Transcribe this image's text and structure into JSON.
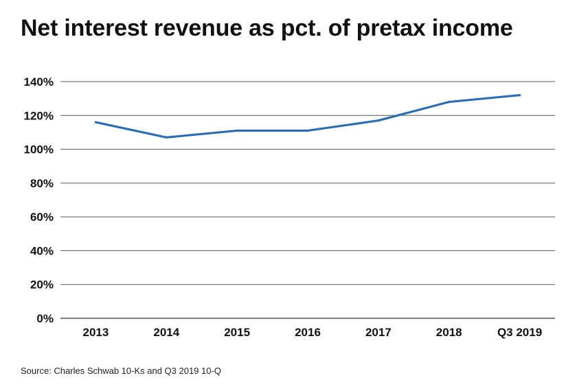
{
  "chart_data": {
    "type": "line",
    "title": "Net interest revenue as pct. of pretax income",
    "xlabel": "",
    "ylabel": "",
    "categories": [
      "2013",
      "2014",
      "2015",
      "2016",
      "2017",
      "2018",
      "Q3 2019"
    ],
    "series": [
      {
        "name": "Net interest revenue as pct. of pretax income",
        "values": [
          116,
          107,
          111,
          111,
          117,
          128,
          132
        ],
        "color": "#2a6db3"
      }
    ],
    "ylim": [
      0,
      140
    ],
    "yticks": [
      0,
      20,
      40,
      60,
      80,
      100,
      120,
      140
    ],
    "ytick_labels": [
      "0%",
      "20%",
      "40%",
      "60%",
      "80%",
      "100%",
      "120%",
      "140%"
    ],
    "grid": true,
    "source": "Source: Charles Schwab 10-Ks and Q3 2019 10-Q"
  }
}
